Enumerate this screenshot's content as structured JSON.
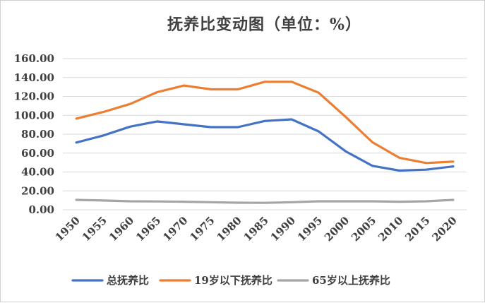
{
  "chart_data": {
    "type": "line",
    "title": "抚养比变动图（单位：%）",
    "xlabel": "",
    "ylabel": "",
    "x": [
      "1950",
      "1955",
      "1960",
      "1965",
      "1970",
      "1975",
      "1980",
      "1985",
      "1990",
      "1995",
      "2000",
      "2005",
      "2010",
      "2015",
      "2020"
    ],
    "y_ticks": [
      "0.00",
      "20.00",
      "40.00",
      "60.00",
      "80.00",
      "100.00",
      "120.00",
      "140.00",
      "160.00"
    ],
    "ylim": [
      0,
      160
    ],
    "grid": true,
    "legend_position": "bottom",
    "series": [
      {
        "name": "总抚养比",
        "color": "#4472c4",
        "values": [
          71.2,
          78.6,
          88.0,
          93.5,
          90.5,
          87.5,
          87.5,
          94.0,
          95.7,
          83.0,
          62.0,
          46.5,
          41.5,
          42.5,
          45.9
        ]
      },
      {
        "name": "19岁以下抚养比",
        "color": "#ed7d31",
        "values": [
          96.5,
          103.5,
          112.0,
          124.5,
          131.5,
          127.5,
          127.5,
          135.5,
          135.5,
          124.0,
          98.5,
          71.5,
          55.0,
          49.5,
          51.0
        ]
      },
      {
        "name": "65岁以上抚养比",
        "color": "#a5a5a5",
        "values": [
          10.5,
          9.8,
          9.0,
          8.8,
          8.5,
          8.0,
          7.5,
          7.3,
          8.0,
          9.0,
          9.0,
          9.0,
          8.5,
          9.0,
          10.5
        ]
      }
    ]
  }
}
